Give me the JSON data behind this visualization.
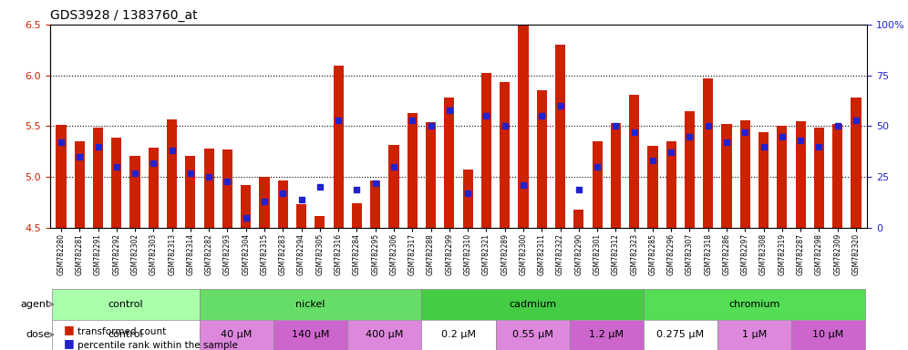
{
  "title": "GDS3928 / 1383760_at",
  "samples": [
    "GSM782280",
    "GSM782281",
    "GSM782291",
    "GSM782292",
    "GSM782302",
    "GSM782303",
    "GSM782313",
    "GSM782314",
    "GSM782282",
    "GSM782293",
    "GSM782304",
    "GSM782315",
    "GSM782283",
    "GSM782294",
    "GSM782305",
    "GSM782316",
    "GSM782284",
    "GSM782295",
    "GSM782306",
    "GSM782317",
    "GSM782288",
    "GSM782299",
    "GSM782310",
    "GSM782321",
    "GSM782289",
    "GSM782300",
    "GSM782311",
    "GSM782322",
    "GSM782290",
    "GSM782301",
    "GSM782312",
    "GSM782323",
    "GSM782285",
    "GSM782296",
    "GSM782307",
    "GSM782318",
    "GSM782286",
    "GSM782297",
    "GSM782308",
    "GSM782319",
    "GSM782287",
    "GSM782298",
    "GSM782309",
    "GSM782320"
  ],
  "red_values": [
    5.51,
    5.35,
    5.49,
    5.39,
    5.21,
    5.29,
    5.57,
    5.21,
    5.28,
    5.27,
    4.92,
    5.0,
    4.97,
    4.73,
    4.62,
    6.1,
    4.74,
    4.97,
    5.32,
    5.63,
    5.54,
    5.78,
    5.07,
    6.02,
    5.93,
    6.58,
    5.85,
    6.3,
    4.68,
    5.35,
    5.53,
    5.81,
    5.31,
    5.35,
    5.65,
    5.97,
    5.52,
    5.56,
    5.44,
    5.5,
    5.55,
    5.49,
    5.52,
    5.78
  ],
  "blue_values": [
    42,
    35,
    40,
    30,
    27,
    32,
    38,
    27,
    25,
    23,
    5,
    13,
    17,
    14,
    20,
    53,
    19,
    22,
    30,
    53,
    50,
    58,
    17,
    55,
    50,
    21,
    55,
    60,
    19,
    30,
    50,
    47,
    33,
    37,
    45,
    50,
    42,
    47,
    40,
    45,
    43,
    40,
    50,
    53
  ],
  "ylim_left": [
    4.5,
    6.5
  ],
  "ylim_right": [
    0,
    100
  ],
  "yticks_left": [
    4.5,
    5.0,
    5.5,
    6.0,
    6.5
  ],
  "yticks_right": [
    0,
    25,
    50,
    75,
    100
  ],
  "agents": [
    {
      "label": "control",
      "start": 0,
      "end": 8,
      "color": "#aaffaa"
    },
    {
      "label": "nickel",
      "start": 8,
      "end": 20,
      "color": "#66dd66"
    },
    {
      "label": "cadmium",
      "start": 20,
      "end": 32,
      "color": "#44cc44"
    },
    {
      "label": "chromium",
      "start": 32,
      "end": 44,
      "color": "#55dd55"
    }
  ],
  "doses": [
    {
      "label": "control",
      "start": 0,
      "end": 8,
      "color": "#ffffff"
    },
    {
      "label": "40 μM",
      "start": 8,
      "end": 12,
      "color": "#dd88dd"
    },
    {
      "label": "140 μM",
      "start": 12,
      "end": 16,
      "color": "#cc66cc"
    },
    {
      "label": "400 μM",
      "start": 16,
      "end": 20,
      "color": "#dd88dd"
    },
    {
      "label": "0.2 μM",
      "start": 20,
      "end": 24,
      "color": "#ffffff"
    },
    {
      "label": "0.55 μM",
      "start": 24,
      "end": 28,
      "color": "#dd88dd"
    },
    {
      "label": "1.2 μM",
      "start": 28,
      "end": 32,
      "color": "#cc66cc"
    },
    {
      "label": "0.275 μM",
      "start": 32,
      "end": 36,
      "color": "#ffffff"
    },
    {
      "label": "1 μM",
      "start": 36,
      "end": 40,
      "color": "#dd88dd"
    },
    {
      "label": "10 μM",
      "start": 40,
      "end": 44,
      "color": "#cc66cc"
    }
  ],
  "bar_color": "#cc2200",
  "dot_color": "#2222cc",
  "grid_color": "#000000",
  "bg_color": "#ffffff",
  "left_axis_color": "#cc2200",
  "right_axis_color": "#2222cc"
}
